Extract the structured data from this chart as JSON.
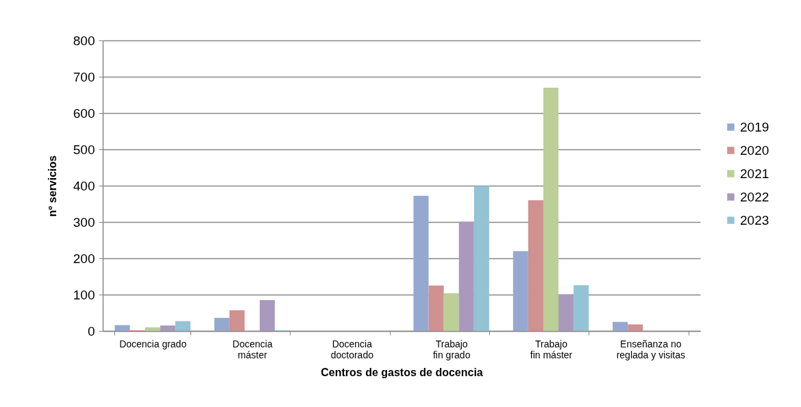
{
  "chart_data": {
    "type": "bar",
    "xlabel": "Centros de gastos de docencia",
    "ylabel": "nº servicios",
    "categories": [
      "Docencia grado",
      "Docencia máster",
      "Docencia doctorado",
      "Trabajo fin grado",
      "Trabajo fin máster",
      "Enseñanza no reglada y visitas"
    ],
    "series": [
      {
        "name": "2019",
        "color": "#95a9d0",
        "values": [
          16,
          36,
          0,
          372,
          220,
          25
        ]
      },
      {
        "name": "2020",
        "color": "#d09191",
        "values": [
          2,
          57,
          0,
          125,
          360,
          18
        ]
      },
      {
        "name": "2021",
        "color": "#bbcf96",
        "values": [
          10,
          0,
          0,
          104,
          670,
          0
        ]
      },
      {
        "name": "2022",
        "color": "#a99abd",
        "values": [
          15,
          85,
          0,
          301,
          101,
          0
        ]
      },
      {
        "name": "2023",
        "color": "#93c3d5",
        "values": [
          27,
          2,
          0,
          399,
          126,
          0
        ]
      }
    ],
    "ylim": [
      0,
      800
    ],
    "yticks": [
      0,
      100,
      200,
      300,
      400,
      500,
      600,
      700,
      800
    ],
    "grid": "y",
    "legend": "right"
  }
}
